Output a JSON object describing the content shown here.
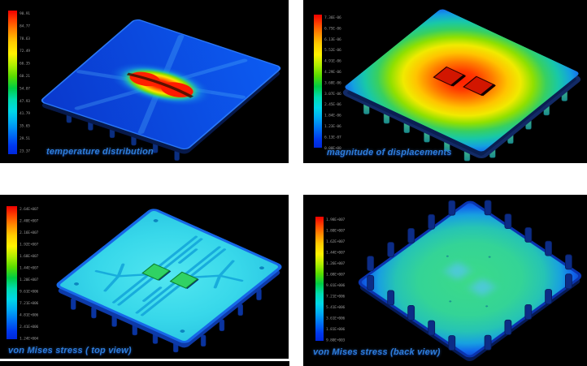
{
  "figure": {
    "layout": "2x2 grid of FEA contour plots on black panels"
  },
  "colors": {
    "panel_background": "#000000",
    "page_background": "#ffffff",
    "caption_text": "#2f7ed8",
    "tick_text": "#959595",
    "colormap": [
      "#ee0000",
      "#ff8800",
      "#fff200",
      "#58dc00",
      "#00dcb0",
      "#00aaf4",
      "#0028dc"
    ]
  },
  "panels": [
    {
      "name": "temperature-distribution",
      "caption": "temperature distribution",
      "colorbar": {
        "ticks": [
          "90.91",
          "84.77",
          "78.63",
          "72.49",
          "66.35",
          "60.21",
          "54.07",
          "47.93",
          "41.79",
          "35.65",
          "29.51",
          "23.37"
        ]
      }
    },
    {
      "name": "magnitude-of-displacements",
      "caption": "magnitude of displacements",
      "colorbar": {
        "ticks": [
          "7.36E-06",
          "6.75E-06",
          "6.13E-06",
          "5.52E-06",
          "4.91E-06",
          "4.29E-06",
          "3.68E-06",
          "3.07E-06",
          "2.45E-06",
          "1.84E-06",
          "1.23E-06",
          "6.13E-07",
          "0.00E+00"
        ]
      }
    },
    {
      "name": "von-mises-stress-top-view",
      "caption": "von Mises stress ( top view)",
      "colorbar": {
        "ticks": [
          "2.64E+007",
          "2.40E+007",
          "2.16E+007",
          "1.92E+007",
          "1.68E+007",
          "1.44E+007",
          "1.20E+007",
          "9.61E+006",
          "7.21E+006",
          "4.81E+006",
          "2.41E+006",
          "1.24E+004"
        ]
      }
    },
    {
      "name": "von-mises-stress-back-view",
      "caption": "von Mises stress (back view)",
      "colorbar": {
        "ticks": [
          "1.98E+007",
          "1.80E+007",
          "1.62E+007",
          "1.44E+007",
          "1.26E+007",
          "1.08E+007",
          "9.01E+006",
          "7.21E+006",
          "5.41E+006",
          "3.61E+006",
          "1.81E+006",
          "9.80E+003"
        ]
      }
    }
  ],
  "chart_data": [
    {
      "type": "heatmap",
      "title": "temperature distribution",
      "colormap": "rainbow (red=max, blue=min)",
      "legend_position": "left",
      "legend_ticks": [
        "90.91",
        "84.77",
        "78.63",
        "72.49",
        "66.35",
        "60.21",
        "54.07",
        "47.93",
        "41.79",
        "35.65",
        "29.51",
        "23.37"
      ],
      "description": "isometric chip-package board, mostly blue (cool) with a two-lobed red hot spot at the dies in the centre, yellow-green halo, pins under the front edges"
    },
    {
      "type": "heatmap",
      "title": "magnitude of displacements",
      "colormap": "rainbow (red=max, blue=min)",
      "legend_position": "left",
      "legend_ticks": [
        "7.36E-06",
        "6.75E-06",
        "6.13E-06",
        "5.52E-06",
        "4.91E-06",
        "4.29E-06",
        "3.68E-06",
        "3.07E-06",
        "2.45E-06",
        "1.84E-06",
        "1.23E-06",
        "6.13E-07",
        "0.00E+00"
      ],
      "description": "displacement magnitude peaks (red) at the plate centre around two dark-red dies and falls radially to blue at the corners"
    },
    {
      "type": "heatmap",
      "title": "von Mises stress ( top view)",
      "colormap": "rainbow (red=max, blue=min)",
      "legend_position": "left",
      "legend_ticks": [
        "2.64E+007",
        "2.40E+007",
        "2.16E+007",
        "1.92E+007",
        "1.68E+007",
        "1.44E+007",
        "1.20E+007",
        "9.61E+006",
        "7.21E+006",
        "4.81E+006",
        "2.41E+006",
        "1.24E+004"
      ],
      "description": "top face mostly low uniform cyan stress; darker blue copper-trace lines radiate from two green dies; blue rim and pins below front edges"
    },
    {
      "type": "heatmap",
      "title": "von Mises stress (back view)",
      "colormap": "rainbow (red=max, blue=min)",
      "legend_position": "left",
      "legend_ticks": [
        "1.98E+007",
        "1.80E+007",
        "1.62E+007",
        "1.44E+007",
        "1.26E+007",
        "1.08E+007",
        "9.01E+006",
        "7.21E+006",
        "5.41E+006",
        "3.61E+006",
        "1.81E+006",
        "9.80E+003"
      ],
      "description": "diamond-oriented back face, green mid-level stress in the middle fading to blue rim, dark-blue pins all around the perimeter, two soft light-blue patches at the die locations"
    }
  ]
}
